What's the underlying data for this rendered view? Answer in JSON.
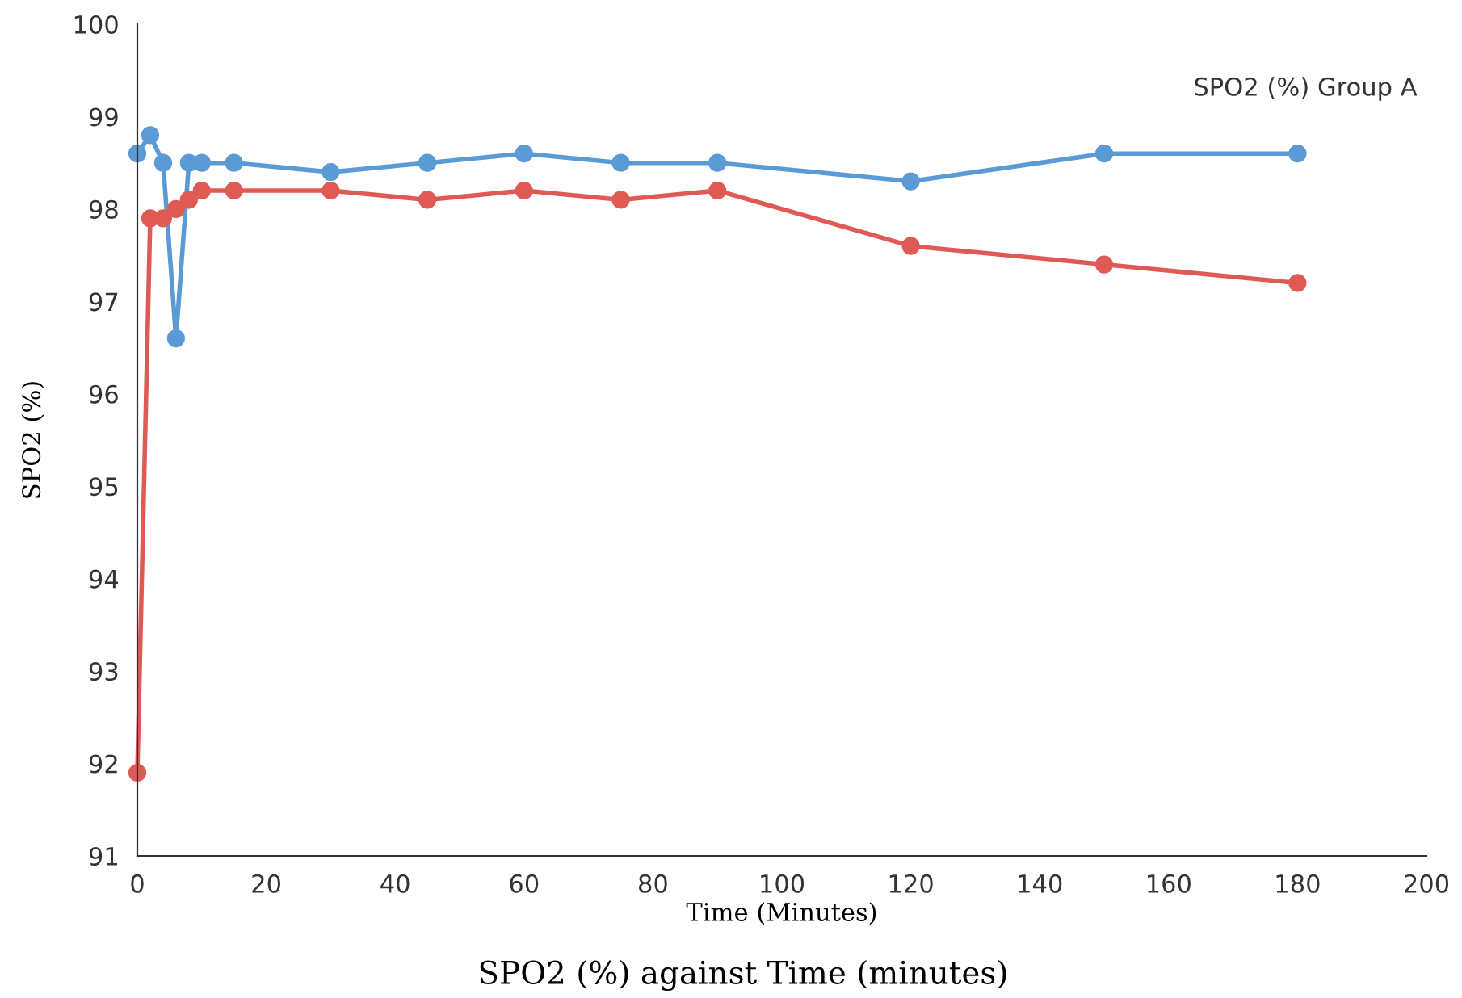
{
  "chart_data": {
    "type": "line",
    "title": "SPO2 (%) against Time (minutes)",
    "xlabel": "Time (Minutes)",
    "ylabel": "SPO2 (%)",
    "annotations": [
      "SPO2 (%) Group A"
    ],
    "x": [
      0,
      2,
      4,
      6,
      8,
      10,
      15,
      30,
      45,
      60,
      75,
      90,
      120,
      150,
      180
    ],
    "series": [
      {
        "color": "#5b9bd5",
        "values": [
          98.6,
          98.8,
          98.5,
          96.6,
          98.5,
          98.5,
          98.5,
          98.4,
          98.5,
          98.6,
          98.5,
          98.5,
          98.3,
          98.6,
          98.6
        ]
      },
      {
        "color": "#e05a55",
        "values": [
          91.9,
          97.9,
          97.9,
          98.0,
          98.1,
          98.2,
          98.2,
          98.2,
          98.1,
          98.2,
          98.1,
          98.2,
          97.6,
          97.4,
          97.2
        ]
      }
    ],
    "xlim": [
      0,
      200
    ],
    "xticks": [
      0,
      20,
      40,
      60,
      80,
      100,
      120,
      140,
      160,
      180,
      200
    ],
    "ylim": [
      91,
      100
    ],
    "yticks": [
      91,
      92,
      93,
      94,
      95,
      96,
      97,
      98,
      99,
      100
    ],
    "grid": false,
    "marker": "circle",
    "line_style": "solid"
  }
}
